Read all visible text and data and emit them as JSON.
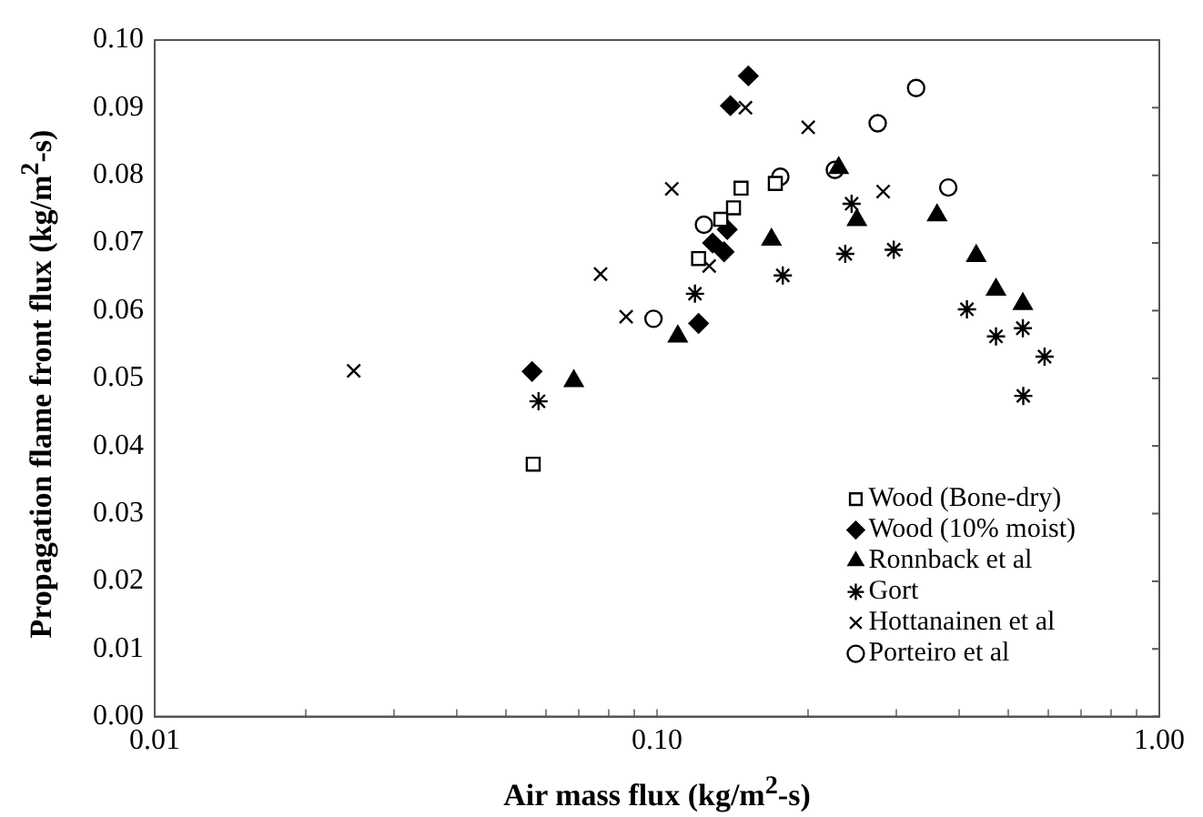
{
  "chart_data": {
    "type": "scatter",
    "xlabel": "Air mass flux (kg/m$^{2}$-s)",
    "ylabel": "Propagation flame front flux (kg/m$^{2}$-s)",
    "log": "x",
    "grid": false,
    "legend": "bottom right",
    "xlim": [
      0.01,
      1
    ],
    "xticks": [
      {
        "value": 0.01,
        "label": "0.01"
      },
      {
        "value": 0.02,
        "label": null
      },
      {
        "value": 0.03,
        "label": null
      },
      {
        "value": 0.04,
        "label": null
      },
      {
        "value": 0.05,
        "label": null
      },
      {
        "value": 0.06,
        "label": null
      },
      {
        "value": 0.07,
        "label": null
      },
      {
        "value": 0.08,
        "label": null
      },
      {
        "value": 0.09,
        "label": null
      },
      {
        "value": 0.1,
        "label": "0.10"
      },
      {
        "value": 0.2,
        "label": null
      },
      {
        "value": 0.3,
        "label": null
      },
      {
        "value": 0.4,
        "label": null
      },
      {
        "value": 0.5,
        "label": null
      },
      {
        "value": 0.6,
        "label": null
      },
      {
        "value": 0.7,
        "label": null
      },
      {
        "value": 0.8,
        "label": null
      },
      {
        "value": 0.9,
        "label": null
      },
      {
        "value": 1,
        "label": "1.00"
      }
    ],
    "ylim": [
      0,
      0.1
    ],
    "yticks": [
      {
        "value": 0,
        "label": "0.00"
      },
      {
        "value": 0.01,
        "label": "0.01"
      },
      {
        "value": 0.02,
        "label": "0.02"
      },
      {
        "value": 0.03,
        "label": "0.03"
      },
      {
        "value": 0.04,
        "label": "0.04"
      },
      {
        "value": 0.05,
        "label": "0.05"
      },
      {
        "value": 0.06,
        "label": "0.06"
      },
      {
        "value": 0.07,
        "label": "0.07"
      },
      {
        "value": 0.08,
        "label": "0.08"
      },
      {
        "value": 0.09,
        "label": "0.09"
      },
      {
        "value": 0.1,
        "label": "0.10"
      }
    ],
    "series": [
      {
        "name": "Wood (Bone-dry)",
        "color": "#000000",
        "marker": "square",
        "x": [
          0.0567,
          0.121,
          0.134,
          0.142,
          0.147,
          0.172
        ],
        "values": [
          0.0373,
          0.0677,
          0.0735,
          0.0752,
          0.0781,
          0.0788
        ]
      },
      {
        "name": "Wood (10% moist)",
        "color": "#000000",
        "marker": "diamond",
        "x": [
          0.0564,
          0.121,
          0.129,
          0.136,
          0.138,
          0.14,
          0.152
        ],
        "values": [
          0.051,
          0.0581,
          0.07,
          0.0687,
          0.072,
          0.0903,
          0.0947
        ]
      },
      {
        "name": "Ronnback et al",
        "color": "#000000",
        "marker": "triangle",
        "x": [
          0.0683,
          0.11,
          0.169,
          0.23,
          0.25,
          0.361,
          0.432,
          0.473,
          0.535
        ],
        "values": [
          0.0496,
          0.0562,
          0.0705,
          0.0811,
          0.0734,
          0.0741,
          0.0681,
          0.0631,
          0.061
        ]
      },
      {
        "name": "Gort",
        "color": "#000000",
        "x": [
          0.0581,
          0.119,
          0.178,
          0.237,
          0.244,
          0.296,
          0.414,
          0.473,
          0.535,
          0.536,
          0.591
        ],
        "values": [
          0.0466,
          0.0625,
          0.0652,
          0.0684,
          0.0758,
          0.069,
          0.0602,
          0.0562,
          0.0574,
          0.0474,
          0.0532
        ]
      },
      {
        "name": "Hottanainen et al",
        "color": "#000000",
        "marker": "cross",
        "x": [
          0.0249,
          0.0772,
          0.0868,
          0.107,
          0.127,
          0.15,
          0.2,
          0.282
        ],
        "values": [
          0.0511,
          0.0654,
          0.0591,
          0.078,
          0.0666,
          0.09,
          0.0871,
          0.0776
        ]
      },
      {
        "name": "Porteiro et al",
        "color": "#000000",
        "marker": "circle",
        "x": [
          0.0984,
          0.124,
          0.176,
          0.226,
          0.275,
          0.328,
          0.38
        ],
        "values": [
          0.0588,
          0.0727,
          0.0798,
          0.0808,
          0.0877,
          0.0929,
          0.0782
        ]
      }
    ]
  }
}
